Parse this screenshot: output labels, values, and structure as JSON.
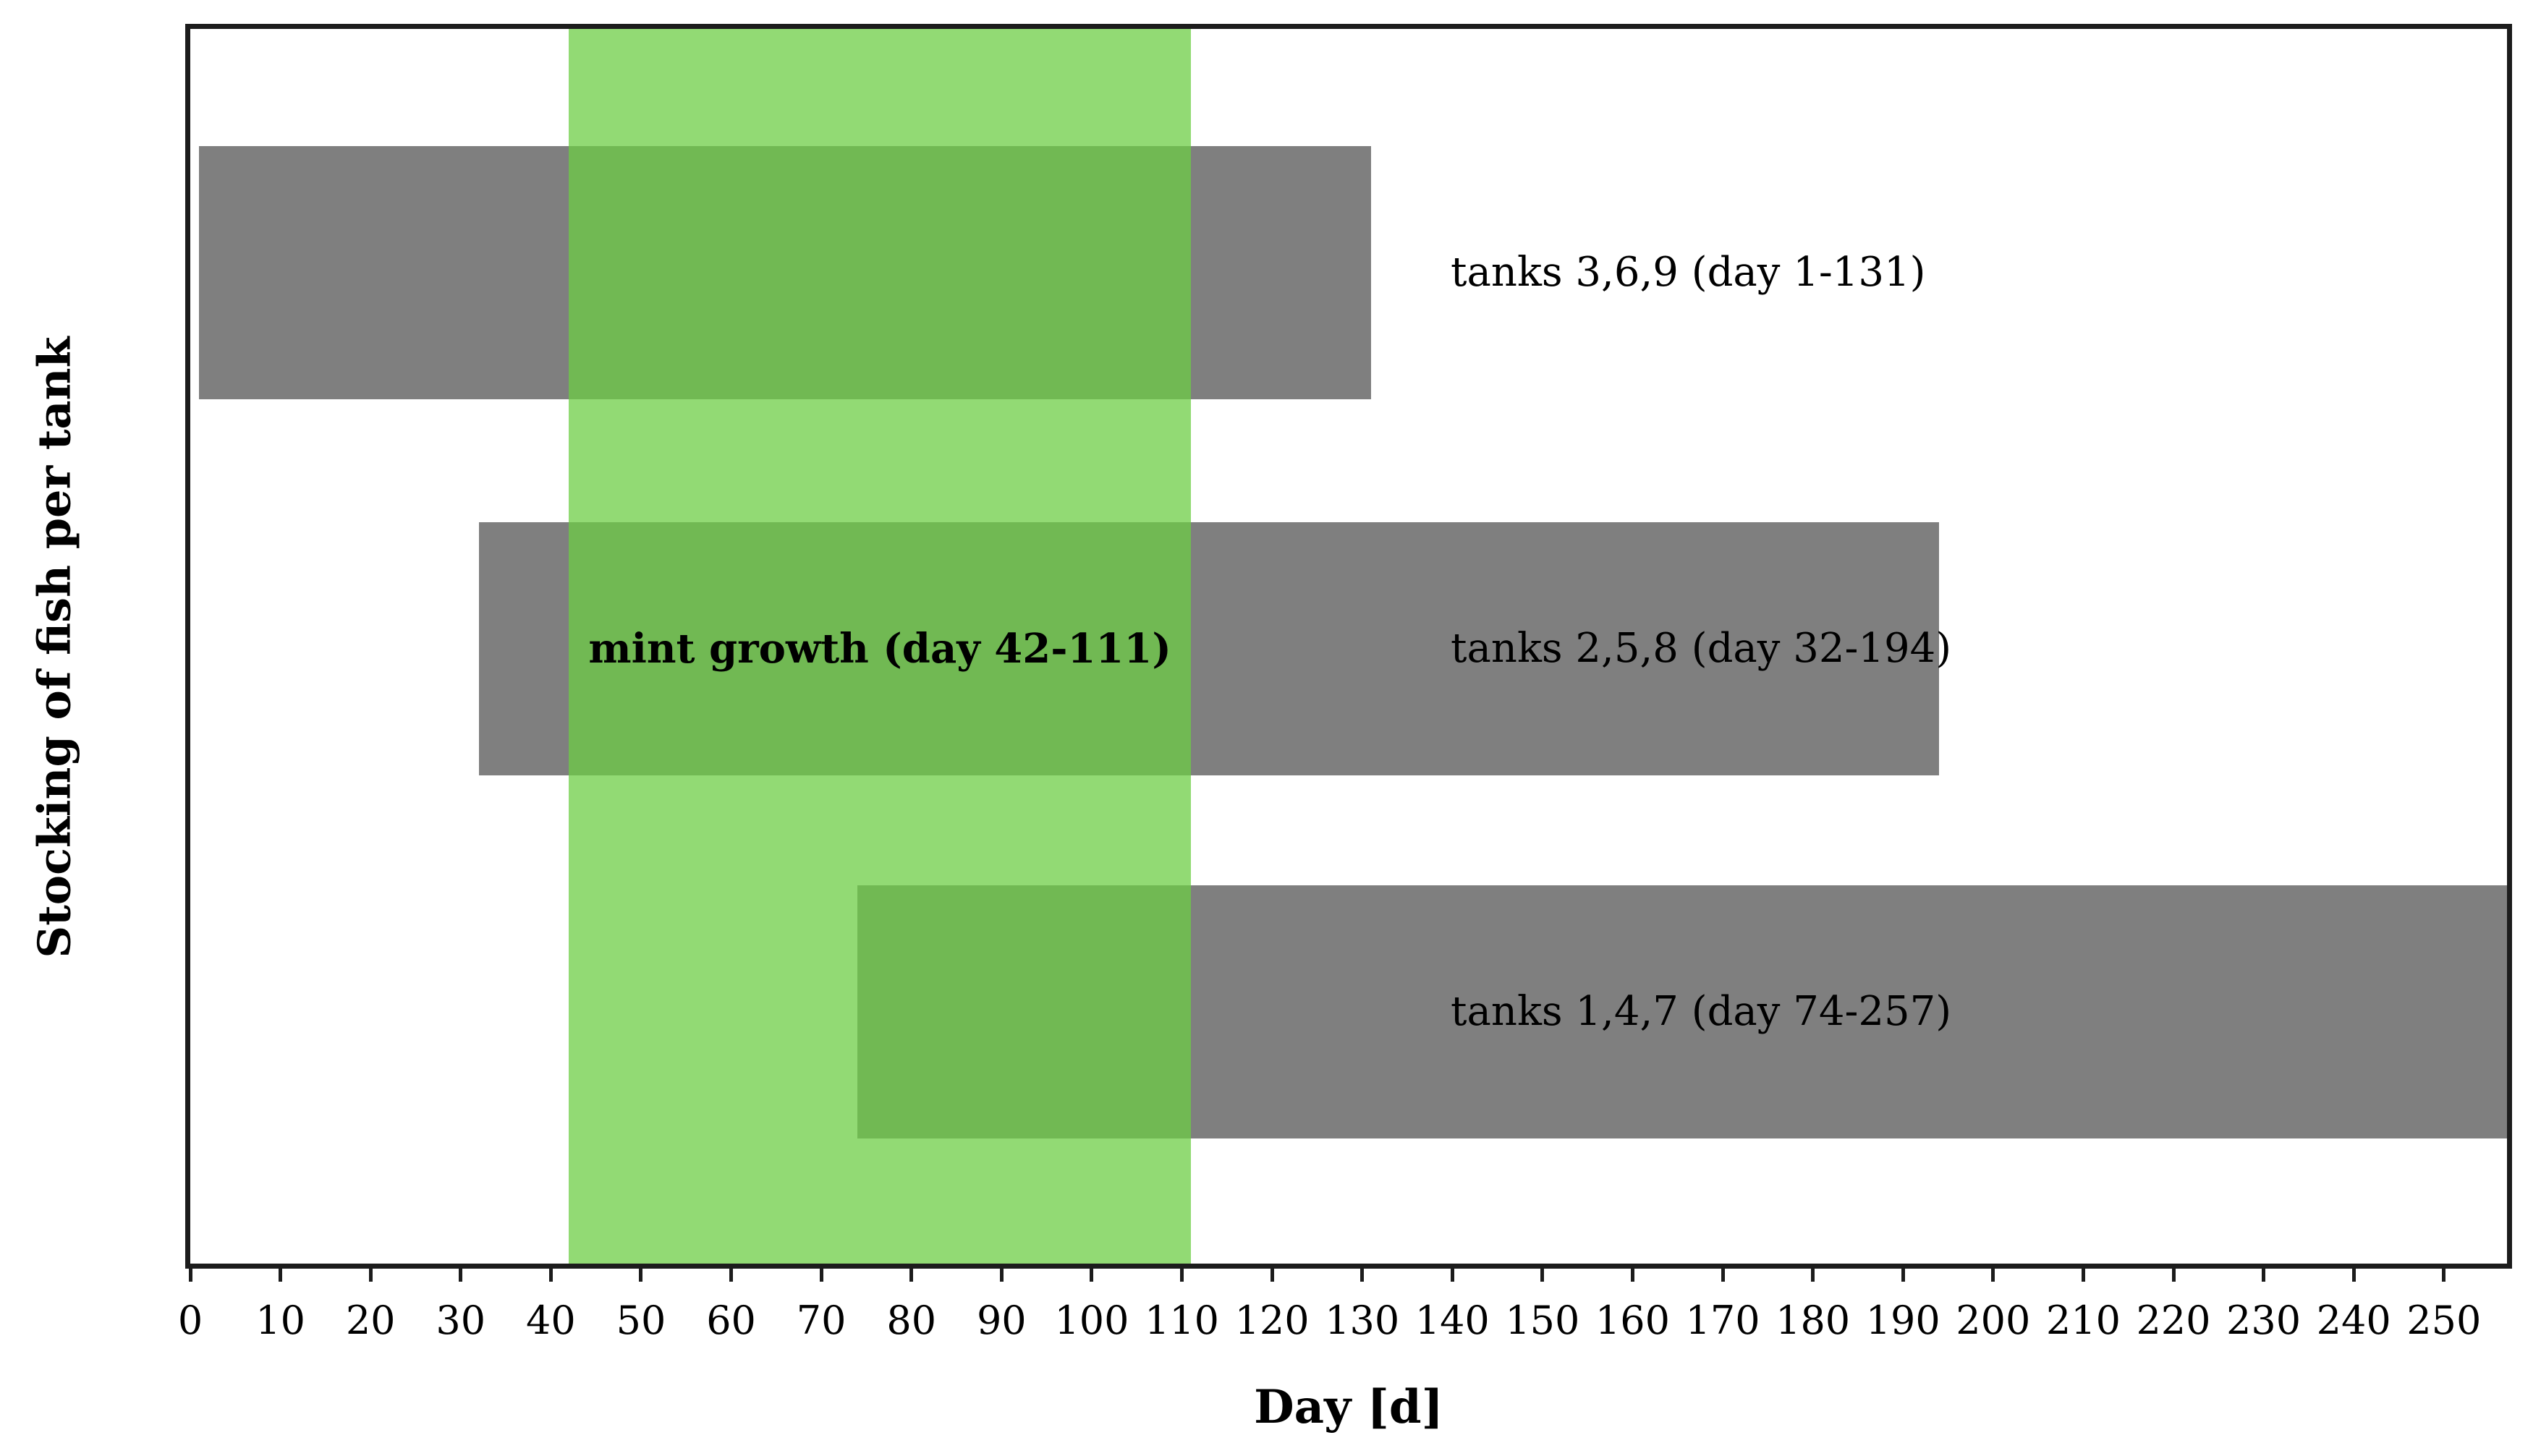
{
  "chart_data": {
    "type": "bar",
    "orientation": "horizontal",
    "title": "",
    "xlabel": "Day [d]",
    "ylabel": "Stocking of fish per tank",
    "xlim": [
      0,
      257
    ],
    "xticks": [
      0,
      10,
      20,
      30,
      40,
      50,
      60,
      70,
      80,
      90,
      100,
      110,
      120,
      130,
      140,
      150,
      160,
      170,
      180,
      190,
      200,
      210,
      220,
      230,
      240,
      250
    ],
    "grid": false,
    "legend": "none",
    "bars": [
      {
        "name": "tanks-3-6-9",
        "label": "tanks 3,6,9 (day 1-131)",
        "start_day": 1,
        "end_day": 131
      },
      {
        "name": "tanks-2-5-8",
        "label": "tanks 2,5,8 (day 32-194)",
        "start_day": 32,
        "end_day": 194
      },
      {
        "name": "tanks-1-4-7",
        "label": "tanks 1,4,7 (day 74-257)",
        "start_day": 74,
        "end_day": 257
      }
    ],
    "highlight_band": {
      "name": "mint-growth",
      "label": "mint growth (day 42-111)",
      "start_day": 42,
      "end_day": 111
    },
    "colors": {
      "bar_fill": "#7F7F7F",
      "band_fill": "#6CCD43",
      "band_opacity": 0.74,
      "axis_line": "#1C1C1C",
      "text": "#000000",
      "background": "#FFFFFF"
    }
  }
}
